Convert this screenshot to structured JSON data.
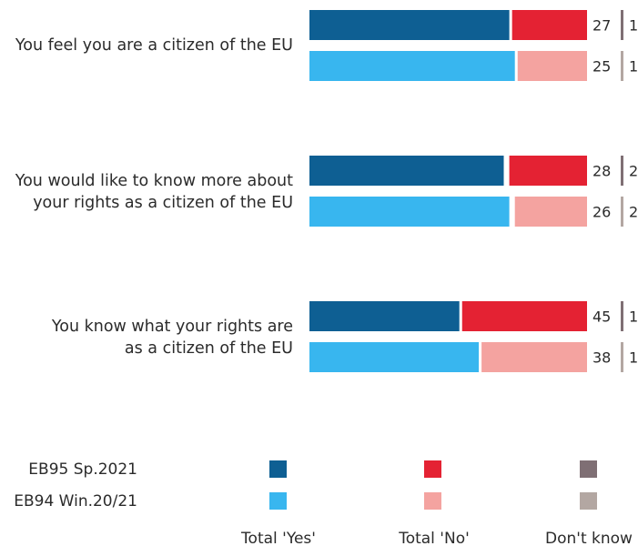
{
  "chart_data": {
    "type": "bar",
    "orientation": "horizontal-stacked",
    "categories": [
      [
        "You feel you are a citizen of the EU"
      ],
      [
        "You would like to know more about",
        "your rights as a citizen of the EU"
      ],
      [
        "You know what your rights are",
        "as a citizen of the EU"
      ]
    ],
    "series": [
      {
        "name": "EB95 Sp.2021",
        "yes": [
          72,
          70,
          54
        ],
        "no": [
          27,
          28,
          45
        ],
        "dont_know": [
          1,
          2,
          1
        ]
      },
      {
        "name": "EB94 Win.20/21",
        "yes": [
          74,
          72,
          61
        ],
        "no": [
          25,
          26,
          38
        ],
        "dont_know": [
          1,
          2,
          1
        ]
      }
    ],
    "columns": [
      "Total 'Yes'",
      "Total 'No'",
      "Don't know"
    ],
    "colors": {
      "EB95 Sp.2021": {
        "yes": "#0e5f93",
        "no": "#e42233",
        "dont_know": "#7f6f74"
      },
      "EB94 Win.20/21": {
        "yes": "#38b6ef",
        "no": "#f4a3a0",
        "dont_know": "#b3a7a2"
      }
    },
    "legend_placement": "bottom"
  }
}
